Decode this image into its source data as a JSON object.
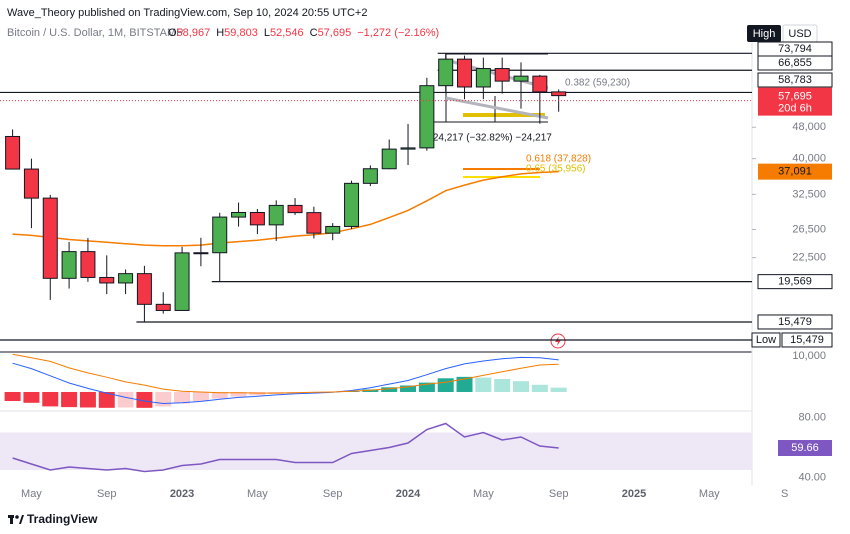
{
  "header": {
    "publisher": "Wave_Theory published on TradingView.com, Sep 10, 2024 20:55 UTC+2",
    "symbol": "Bitcoin / U.S. Dollar, 1M, BITSTAMP",
    "ohlc": [
      {
        "letter": "O",
        "text": "58,967"
      },
      {
        "letter": "H",
        "text": "59,803"
      },
      {
        "letter": "L",
        "text": "52,546"
      },
      {
        "letter": "C",
        "text": "57,695"
      }
    ],
    "change": "−1,272 (−2.16%)",
    "high_button": "High",
    "currency": "USD"
  },
  "footer": {
    "brand": "TradingView"
  },
  "chart_data": {
    "type": "candlestick",
    "log": true,
    "ylim": [
      13000,
      78800
    ],
    "yticks": [
      {
        "value": 48000,
        "label": "48,000"
      },
      {
        "value": 40000,
        "label": "40,000"
      },
      {
        "value": 32500,
        "label": "32,500"
      },
      {
        "value": 26500,
        "label": "26,500"
      },
      {
        "value": 22500,
        "label": "22,500"
      }
    ],
    "xticks": [
      {
        "value": 1,
        "label": "May"
      },
      {
        "value": 5,
        "label": "Sep"
      },
      {
        "value": 9,
        "label": "2023"
      },
      {
        "value": 13,
        "label": "May"
      },
      {
        "value": 17,
        "label": "Sep"
      },
      {
        "value": 21,
        "label": "2024"
      },
      {
        "value": 25,
        "label": "May"
      },
      {
        "value": 29,
        "label": "Sep"
      },
      {
        "value": 33,
        "label": "2025"
      },
      {
        "value": 37,
        "label": "May"
      },
      {
        "value": 41,
        "label": "S"
      }
    ],
    "up_color": "#4caf50",
    "down_color": "#f23645",
    "open": [
      45500,
      37650,
      31800,
      19950,
      23300,
      20050,
      19420,
      20500,
      17150,
      16550,
      23130,
      23150,
      28480,
      29250,
      27220,
      30480,
      29230,
      25940,
      26970,
      34650,
      37720,
      42280,
      42580,
      61130,
      71330,
      60670,
      67530,
      62770,
      64620,
      58967
    ],
    "high": [
      47400,
      40000,
      32400,
      24650,
      25200,
      22800,
      21000,
      21450,
      18400,
      23950,
      25250,
      29200,
      31000,
      29850,
      31400,
      31800,
      30250,
      27500,
      35200,
      38450,
      44700,
      48950,
      64000,
      73794,
      72800,
      71950,
      71950,
      70000,
      65100,
      59803
    ],
    "low": [
      37600,
      26700,
      17600,
      18800,
      19550,
      18200,
      18200,
      15480,
      16250,
      16500,
      21400,
      19550,
      26950,
      25800,
      24800,
      28850,
      25150,
      24900,
      26550,
      34100,
      37600,
      38550,
      41900,
      59000,
      56500,
      56550,
      58400,
      53500,
      49000,
      52546
    ],
    "close": [
      37650,
      31800,
      19950,
      23300,
      20050,
      19420,
      20500,
      17150,
      16550,
      23130,
      23150,
      28480,
      29250,
      27220,
      30480,
      29230,
      25940,
      26970,
      34650,
      37720,
      42280,
      42580,
      61130,
      71330,
      60670,
      67530,
      62770,
      64620,
      58967,
      57695
    ],
    "close_label": "57,695",
    "countdown": "20d 6h",
    "ema": {
      "color": "#f57c00",
      "values": [
        25800,
        25600,
        25300,
        25000,
        24800,
        24600,
        24400,
        24200,
        24100,
        24100,
        24200,
        24500,
        24700,
        24900,
        25200,
        25500,
        25700,
        26000,
        26600,
        27300,
        28400,
        29600,
        31300,
        33200,
        34300,
        35300,
        36000,
        36600,
        36900,
        37091
      ],
      "last_label": "37,091"
    },
    "levels": [
      {
        "value": 73794,
        "label": "73,794"
      },
      {
        "value": 66855,
        "label": "66,855"
      },
      {
        "value": 58783,
        "label": "58,783"
      },
      {
        "value": 19569,
        "label": "19,569"
      },
      {
        "value": 15479,
        "label": "15,479"
      }
    ],
    "low_level": {
      "value": 15479,
      "label": "15,479",
      "name": "Low"
    },
    "annotations": [
      {
        "text": "0.382 (59,230)",
        "color": "#787b86"
      },
      {
        "text": "0.618 (37,828)",
        "color": "#f57c00"
      },
      {
        "text": "0.65 (35,956)",
        "color": "#e0c000"
      },
      {
        "text": "−24,217 (−32.82%) −24,217",
        "color": "#131722"
      }
    ],
    "macd": {
      "ylim": [
        -5000,
        11100
      ],
      "yticks": [
        {
          "value": 10000,
          "label": "10,000"
        }
      ],
      "macd_color": "#2962ff",
      "signal_color": "#f57c00",
      "hist_colors": {
        "neg_grow": "#f23645",
        "neg_fall": "#fccbcd",
        "pos_grow": "#22ab94",
        "pos_fall": "#ace5dc"
      },
      "histogram": [
        -2500,
        -3000,
        -4000,
        -4200,
        -4300,
        -4400,
        -4300,
        -4400,
        -4000,
        -3200,
        -2600,
        -1800,
        -1300,
        -900,
        -500,
        -300,
        -200,
        -100,
        200,
        700,
        1300,
        1800,
        2600,
        3800,
        4200,
        4000,
        3600,
        3000,
        2000,
        1200
      ],
      "macd": [
        8000,
        6500,
        4500,
        2500,
        1000,
        -300,
        -1500,
        -2500,
        -3200,
        -3000,
        -2600,
        -2000,
        -1500,
        -1200,
        -800,
        -500,
        -300,
        -100,
        400,
        1200,
        2200,
        3200,
        4800,
        6500,
        7800,
        8600,
        9200,
        9600,
        9500,
        8900
      ],
      "signal": [
        10500,
        9500,
        8500,
        6700,
        5300,
        4100,
        2800,
        1900,
        800,
        200,
        0,
        -200,
        -200,
        -300,
        -300,
        -200,
        -100,
        0,
        200,
        500,
        900,
        1400,
        2200,
        2700,
        3600,
        4600,
        5600,
        6600,
        7500,
        7700
      ]
    },
    "rsi": {
      "ylim": [
        35,
        85
      ],
      "yticks": [
        {
          "value": 80,
          "label": "80.00"
        },
        {
          "value": 40,
          "label": "40.00"
        }
      ],
      "band": [
        45,
        70
      ],
      "color": "#7e57c2",
      "band_color": "#ede7f6",
      "values": [
        53,
        49,
        45,
        47,
        46,
        45,
        46,
        44,
        45,
        48,
        49,
        52,
        52,
        52,
        52,
        50,
        50,
        50,
        56,
        58,
        60,
        63,
        72,
        76,
        67,
        70,
        65,
        67,
        61,
        59.66
      ]
    }
  }
}
